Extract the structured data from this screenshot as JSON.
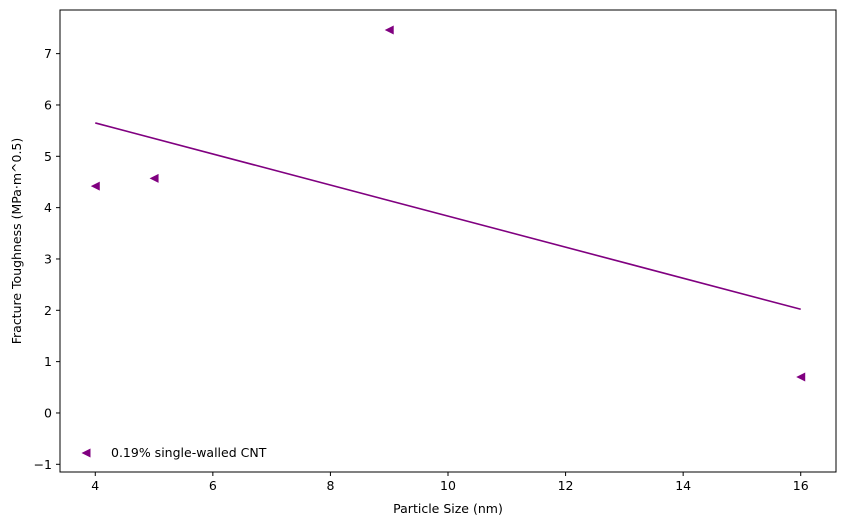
{
  "chart_data": {
    "type": "scatter",
    "xlabel": "Particle Size (nm)",
    "ylabel": "Fracture Toughness (MPa·m^0.5)",
    "xlim": [
      3.4,
      16.6
    ],
    "ylim": [
      -1.15,
      7.85
    ],
    "xticks": [
      4,
      6,
      8,
      10,
      12,
      14,
      16
    ],
    "yticks": [
      -1,
      0,
      1,
      2,
      3,
      4,
      5,
      6,
      7
    ],
    "grid": false,
    "legend_placement": "lower-left",
    "series": [
      {
        "name": "0.19% single-walled CNT",
        "color": "#800080",
        "marker": "triangle-left",
        "points": [
          {
            "x": 4,
            "y": 4.42
          },
          {
            "x": 5,
            "y": 4.57
          },
          {
            "x": 9,
            "y": 7.46
          },
          {
            "x": 16,
            "y": 0.7
          }
        ]
      }
    ],
    "trend_line": {
      "color": "#800080",
      "points": [
        {
          "x": 4,
          "y": 5.65
        },
        {
          "x": 16,
          "y": 2.02
        }
      ]
    }
  }
}
